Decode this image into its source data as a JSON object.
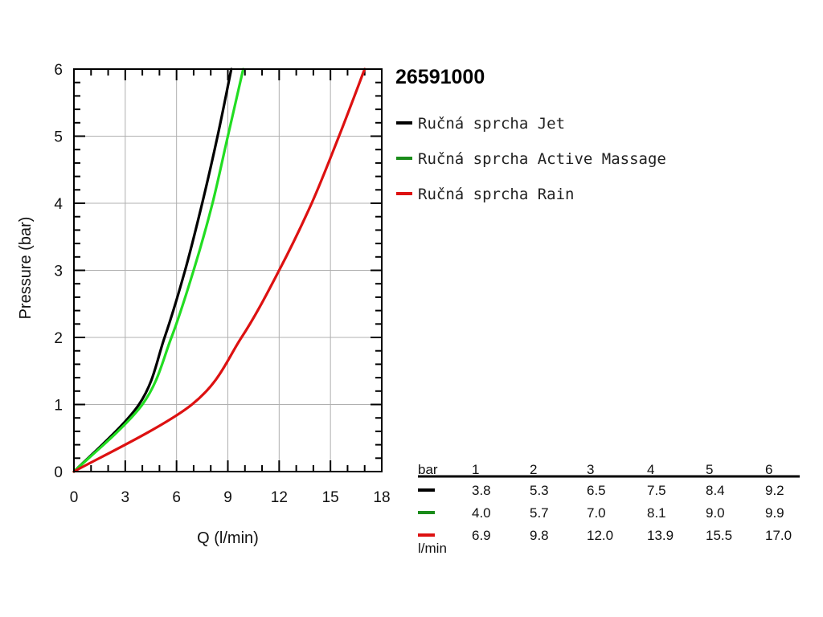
{
  "chart_data": {
    "type": "line",
    "title": "26591000",
    "xlabel": "Q (l/min)",
    "ylabel": "Pressure (bar)",
    "xlim": [
      0,
      18
    ],
    "ylim": [
      0,
      6
    ],
    "x_ticks": [
      "0",
      "3",
      "6",
      "9",
      "12",
      "15",
      "18"
    ],
    "y_ticks": [
      "0",
      "1",
      "2",
      "3",
      "4",
      "5",
      "6"
    ],
    "grid": true,
    "legend_position": "right",
    "series": [
      {
        "name": "Ručná sprcha Jet",
        "color": "#000000",
        "x": [
          0,
          3.8,
          5.3,
          6.5,
          7.5,
          8.4,
          9.2
        ],
        "y": [
          0,
          1,
          2,
          3,
          4,
          5,
          6
        ]
      },
      {
        "name": "Ručná sprcha Active Massage",
        "color": "#22dd22",
        "x": [
          0,
          4.0,
          5.7,
          7.0,
          8.1,
          9.0,
          9.9
        ],
        "y": [
          0,
          1,
          2,
          3,
          4,
          5,
          6
        ]
      },
      {
        "name": "Ručná sprcha Rain",
        "color": "#dd1111",
        "x": [
          0,
          6.9,
          9.8,
          12.0,
          13.9,
          15.5,
          17.0
        ],
        "y": [
          0,
          1,
          2,
          3,
          4,
          5,
          6
        ]
      }
    ],
    "table": {
      "header_label": "bar",
      "unit_label": "l/min",
      "pressures": [
        "1",
        "2",
        "3",
        "4",
        "5",
        "6"
      ],
      "rows": [
        {
          "color": "#000000",
          "values": [
            "3.8",
            "5.3",
            "6.5",
            "7.5",
            "8.4",
            "9.2"
          ]
        },
        {
          "color": "#1a8c1a",
          "values": [
            "4.0",
            "5.7",
            "7.0",
            "8.1",
            "9.0",
            "9.9"
          ]
        },
        {
          "color": "#dd1111",
          "values": [
            "6.9",
            "9.8",
            "12.0",
            "13.9",
            "15.5",
            "17.0"
          ]
        }
      ]
    }
  }
}
